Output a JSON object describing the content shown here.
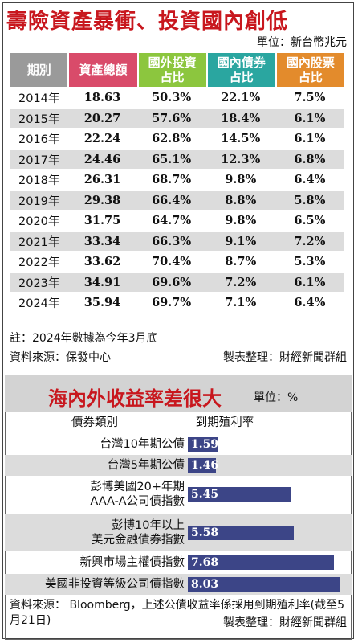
{
  "top": {
    "title": "壽險資產暴衝、投資國內創低",
    "unit": "單位：新台幣兆元",
    "headers": [
      "期別",
      "資產總額",
      "國外投資\n占比",
      "國內債券\n占比",
      "國內股票\n占比"
    ],
    "rows": [
      [
        "2014年",
        "18.63",
        "50.3%",
        "22.1%",
        "7.5%"
      ],
      [
        "2015年",
        "20.27",
        "57.6%",
        "18.4%",
        "6.1%"
      ],
      [
        "2016年",
        "22.24",
        "62.8%",
        "14.5%",
        "6.1%"
      ],
      [
        "2017年",
        "24.46",
        "65.1%",
        "12.3%",
        "6.8%"
      ],
      [
        "2018年",
        "26.31",
        "68.7%",
        "9.8%",
        "6.4%"
      ],
      [
        "2019年",
        "29.38",
        "66.4%",
        "8.8%",
        "5.8%"
      ],
      [
        "2020年",
        "31.75",
        "64.7%",
        "9.8%",
        "6.5%"
      ],
      [
        "2021年",
        "33.34",
        "66.3%",
        "9.1%",
        "7.2%"
      ],
      [
        "2022年",
        "33.62",
        "70.4%",
        "8.7%",
        "5.3%"
      ],
      [
        "2023年",
        "34.91",
        "69.6%",
        "7.2%",
        "6.1%"
      ],
      [
        "2024年",
        "35.94",
        "69.7%",
        "7.1%",
        "6.4%"
      ]
    ],
    "note": "註：2024年數據為今年3月底",
    "source": "資料來源：保發中心",
    "compiled": "製表整理：財經新聞群組"
  },
  "bottom": {
    "title": "海內外收益率差很大",
    "unit": "單位：%",
    "col1": "債券類別",
    "col2": "到期殖利率",
    "source": "資料來源： Bloomberg，上述公債收益率係採用到期殖利率(截至5月21日)",
    "compiled": "製表整理：財經新聞群組"
  },
  "chart_data": {
    "type": "bar",
    "title": "海內外收益率差很大",
    "unit": "%",
    "categories": [
      "台灣10年期公債",
      "台灣5年期公債",
      "彭博美國20+年期\nAAA-A公司債指數",
      "彭博10年以上\n美元金融債券指數",
      "新興市場主權債指數",
      "美國非投資等級公司債指數"
    ],
    "values": [
      1.59,
      1.46,
      5.45,
      5.58,
      7.68,
      8.03
    ],
    "value_labels": [
      "1.59",
      "1.46",
      "5.45",
      "5.58",
      "7.68",
      "8.03"
    ],
    "bar_color": "#3c4587"
  }
}
